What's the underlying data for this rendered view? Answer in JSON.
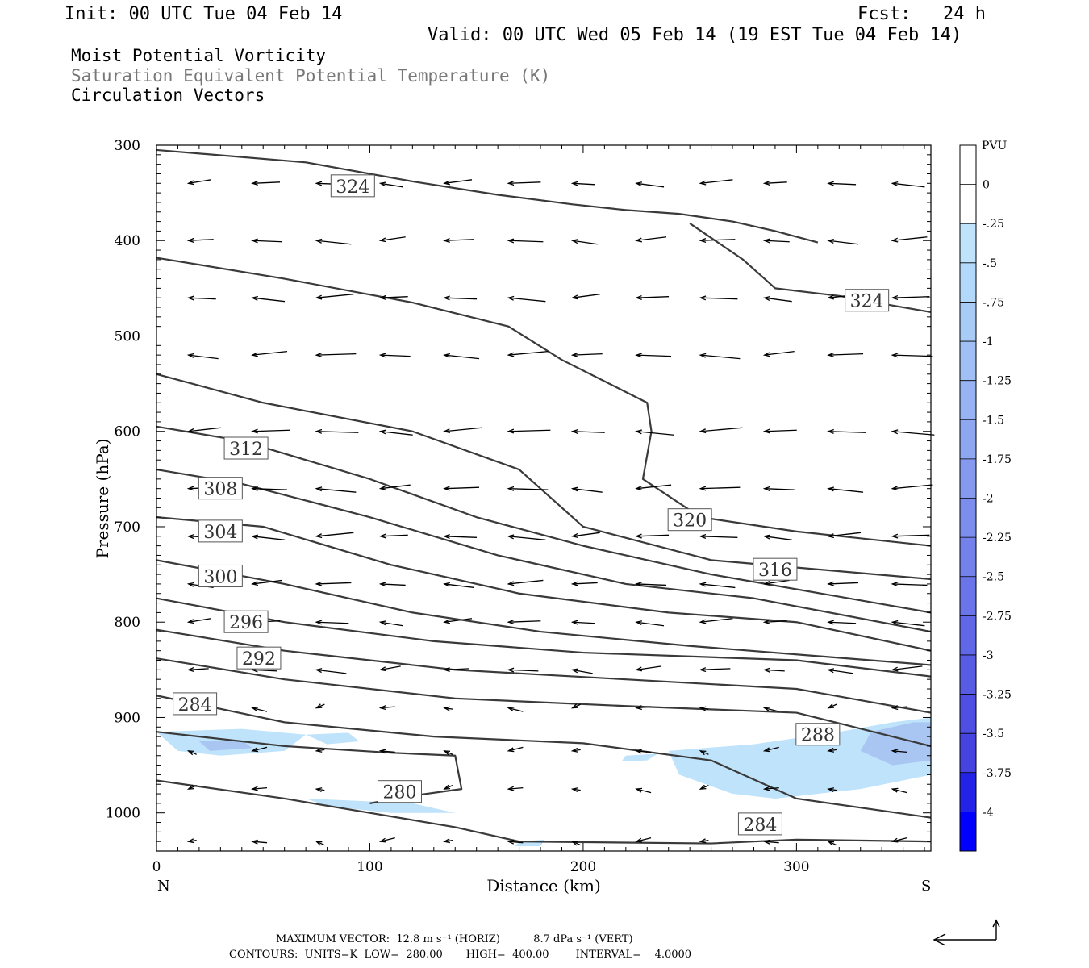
{
  "header": {
    "init": "Init: 00 UTC Tue 04 Feb 14",
    "fcst": "Fcst:   24 h",
    "valid": "Valid: 00 UTC Wed 05 Feb 14 (19 EST Tue 04 Feb 14)",
    "fields": [
      "Moist Potential Vorticity",
      "Saturation Equivalent Potential Temperature (K)",
      "Circulation Vectors"
    ]
  },
  "footer": {
    "max_vector": "MAXIMUM VECTOR:  12.8 m s⁻¹ (HORIZ)          8.7 dPa s⁻¹ (VERT)",
    "contours": "CONTOURS:  UNITS=K  LOW=  280.00       HIGH=  400.00        INTERVAL=    4.0000"
  },
  "colors": {
    "contour": "#3a3a3a",
    "pv_shade_1": "#bfe3fb",
    "pv_shade_2": "#a9c6f2"
  },
  "chart_data": {
    "type": "contour",
    "xlabel": "Distance (km)",
    "ylabel": "Pressure (hPa)",
    "xlim": [
      0,
      363
    ],
    "ylim": [
      1040,
      300
    ],
    "x_ticks": [
      0,
      100,
      200,
      300
    ],
    "y_ticks": [
      300,
      400,
      500,
      600,
      700,
      800,
      900,
      1000
    ],
    "x_end_labels": {
      "left": "N",
      "right": "S"
    },
    "colorbar": {
      "title": "PVU",
      "levels": [
        "0",
        "-.25",
        "-.5",
        "-.75",
        "-1",
        "-1.25",
        "-1.5",
        "-1.75",
        "-2",
        "-2.25",
        "-2.5",
        "-2.75",
        "-3",
        "-3.25",
        "-3.5",
        "-3.75",
        "-4"
      ],
      "colors": [
        "#ffffff",
        "#ffffff",
        "#bfe3fb",
        "#b3d9fa",
        "#a9ccf7",
        "#a0c0f5",
        "#97b3f3",
        "#8ea7f1",
        "#859aef",
        "#7c8eed",
        "#7381eb",
        "#6a75e9",
        "#6168e7",
        "#585ce5",
        "#4f4fe3",
        "#4643e1",
        "#2323e8",
        "#0000ff"
      ]
    },
    "contours": [
      {
        "level": "324",
        "points": [
          [
            0,
            305
          ],
          [
            70,
            318
          ],
          [
            120,
            338
          ],
          [
            160,
            352
          ],
          [
            195,
            362
          ],
          [
            220,
            368
          ],
          [
            245,
            372
          ],
          [
            270,
            380
          ],
          [
            290,
            390
          ],
          [
            310,
            402
          ]
        ],
        "label_at": [
          92,
          343
        ]
      },
      {
        "level": "324",
        "points": [
          [
            250,
            382
          ],
          [
            275,
            420
          ],
          [
            290,
            450
          ],
          [
            320,
            458
          ],
          [
            345,
            468
          ],
          [
            363,
            475
          ]
        ],
        "label_at": [
          333,
          463
        ]
      },
      {
        "level": "320",
        "points": [
          [
            0,
            418
          ],
          [
            60,
            440
          ],
          [
            120,
            465
          ],
          [
            165,
            490
          ],
          [
            190,
            525
          ],
          [
            230,
            570
          ],
          [
            232,
            600
          ],
          [
            228,
            650
          ],
          [
            255,
            690
          ],
          [
            300,
            705
          ],
          [
            363,
            720
          ]
        ],
        "label_at": [
          250,
          693
        ]
      },
      {
        "level": "316",
        "points": [
          [
            0,
            540
          ],
          [
            50,
            570
          ],
          [
            120,
            600
          ],
          [
            170,
            640
          ],
          [
            200,
            700
          ],
          [
            260,
            735
          ],
          [
            363,
            755
          ]
        ],
        "label_at": [
          290,
          745
        ]
      },
      {
        "level": "312",
        "points": [
          [
            0,
            595
          ],
          [
            40,
            610
          ],
          [
            100,
            650
          ],
          [
            150,
            690
          ],
          [
            200,
            720
          ],
          [
            260,
            750
          ],
          [
            363,
            790
          ]
        ],
        "label_at": [
          42,
          618
        ]
      },
      {
        "level": "308",
        "points": [
          [
            0,
            640
          ],
          [
            40,
            655
          ],
          [
            100,
            690
          ],
          [
            160,
            730
          ],
          [
            220,
            760
          ],
          [
            280,
            775
          ],
          [
            363,
            810
          ]
        ],
        "label_at": [
          30,
          660
        ]
      },
      {
        "level": "304",
        "points": [
          [
            0,
            690
          ],
          [
            50,
            700
          ],
          [
            110,
            740
          ],
          [
            170,
            770
          ],
          [
            240,
            790
          ],
          [
            300,
            800
          ],
          [
            363,
            830
          ]
        ],
        "label_at": [
          30,
          705
        ]
      },
      {
        "level": "300",
        "points": [
          [
            0,
            735
          ],
          [
            60,
            760
          ],
          [
            120,
            790
          ],
          [
            180,
            810
          ],
          [
            250,
            825
          ],
          [
            363,
            845
          ]
        ],
        "label_at": [
          30,
          752
        ]
      },
      {
        "level": "296",
        "points": [
          [
            0,
            775
          ],
          [
            60,
            800
          ],
          [
            130,
            820
          ],
          [
            200,
            832
          ],
          [
            300,
            840
          ],
          [
            363,
            857
          ]
        ],
        "label_at": [
          42,
          800
        ]
      },
      {
        "level": "292",
        "points": [
          [
            0,
            808
          ],
          [
            60,
            830
          ],
          [
            140,
            850
          ],
          [
            220,
            860
          ],
          [
            300,
            870
          ],
          [
            363,
            895
          ]
        ],
        "label_at": [
          48,
          838
        ]
      },
      {
        "level": "288",
        "points": [
          [
            0,
            838
          ],
          [
            60,
            860
          ],
          [
            140,
            880
          ],
          [
            220,
            888
          ],
          [
            300,
            895
          ],
          [
            363,
            930
          ]
        ],
        "label_at": [
          310,
          918
        ]
      },
      {
        "level": "284",
        "points": [
          [
            0,
            877
          ],
          [
            60,
            905
          ],
          [
            130,
            920
          ],
          [
            200,
            927
          ],
          [
            260,
            945
          ],
          [
            300,
            985
          ],
          [
            363,
            1005
          ]
        ],
        "label_at": [
          18,
          886
        ]
      },
      {
        "level": "280",
        "points": [
          [
            0,
            915
          ],
          [
            60,
            930
          ],
          [
            110,
            937
          ],
          [
            140,
            940
          ],
          [
            143,
            975
          ],
          [
            120,
            982
          ],
          [
            100,
            990
          ]
        ],
        "label_at": [
          114,
          978
        ]
      },
      {
        "level": "284",
        "points": [
          [
            0,
            966
          ],
          [
            60,
            985
          ],
          [
            100,
            1000
          ],
          [
            140,
            1015
          ],
          [
            170,
            1030
          ],
          [
            260,
            1032
          ],
          [
            300,
            1028
          ],
          [
            363,
            1030
          ]
        ],
        "label_at": [
          283,
          1012
        ]
      }
    ],
    "vectors": {
      "rows_hpa": [
        340,
        400,
        460,
        520,
        600,
        660,
        710,
        760,
        800,
        850,
        890,
        935,
        975,
        1030
      ],
      "note": "horizontal-dominant circulation vectors pointing north (left)"
    },
    "reference_vector": "12.8 m s⁻¹ (HORIZ) / 8.7 dPa s⁻¹ (VERT)"
  }
}
